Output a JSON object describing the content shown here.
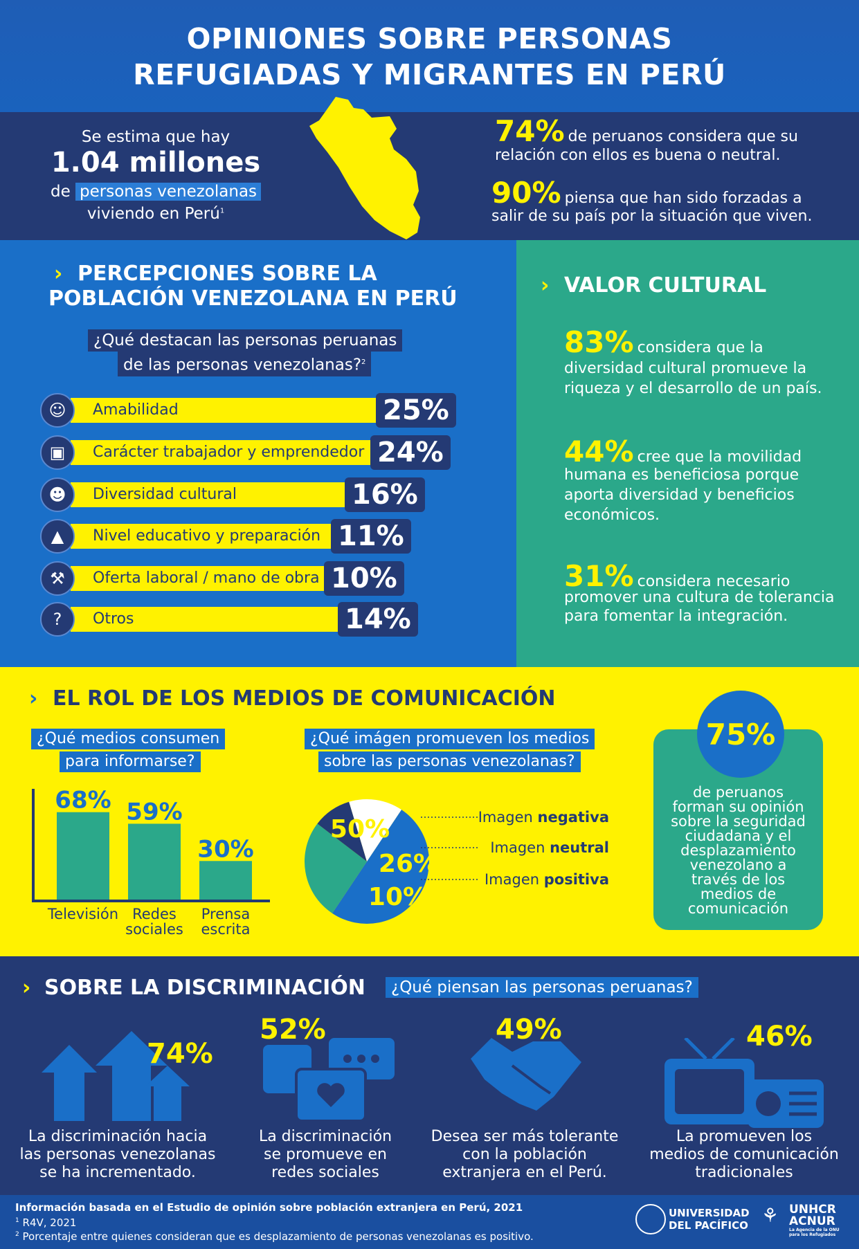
{
  "header": {
    "title_line1": "OPINIONES SOBRE PERSONAS",
    "title_line2": "REFUGIADAS Y MIGRANTES EN PERÚ"
  },
  "intro": {
    "line1": "Se estima que hay",
    "big": "1.04 millones",
    "line3_pre": "de",
    "line3_hl": "personas venezolanas",
    "line4": "viviendo en Perú",
    "line4_sup": "1",
    "stat1_pct": "74%",
    "stat1_text_a": "de peruanos considera que su",
    "stat1_text_b": "relación con ellos es buena o neutral.",
    "stat2_pct": "90%",
    "stat2_text_a": "piensa que han sido forzadas a",
    "stat2_text_b": "salir de su país por la situación que viven."
  },
  "perceptions": {
    "title_line1": "PERCEPCIONES SOBRE LA",
    "title_line2": "POBLACIÓN VENEZOLANA EN PERÚ",
    "question_line1": "¿Qué destacan las personas peruanas",
    "question_line2": "de las personas venezolanas?",
    "question_sup": "2",
    "items": [
      {
        "label": "Amabilidad",
        "value": "25%",
        "icon": "smile-icon",
        "glyph": "☺"
      },
      {
        "label": "Carácter trabajador y emprendedor",
        "value": "24%",
        "icon": "briefcase-icon",
        "glyph": "▣"
      },
      {
        "label": "Diversidad cultural",
        "value": "16%",
        "icon": "theater-masks-icon",
        "glyph": "☻"
      },
      {
        "label": "Nivel educativo y preparación",
        "value": "11%",
        "icon": "graduation-cap-icon",
        "glyph": "▲"
      },
      {
        "label": "Oferta laboral / mano de obra",
        "value": "10%",
        "icon": "wrench-icon",
        "glyph": "⚒"
      },
      {
        "label": "Otros",
        "value": "14%",
        "icon": "question-icon",
        "glyph": "?"
      }
    ]
  },
  "valor": {
    "title": "VALOR CULTURAL",
    "s1_pct": "83%",
    "s1_a": "considera que la",
    "s1_b": "diversidad cultural promueve la",
    "s1_c": "riqueza y el desarrollo de un país.",
    "s2_pct": "44%",
    "s2_a": "cree que la movilidad",
    "s2_b": "humana es beneficiosa porque",
    "s2_c": "aporta diversidad y beneficios",
    "s2_d": "económicos.",
    "s3_pct": "31%",
    "s3_a": "considera necesario",
    "s3_b": "promover una cultura de tolerancia",
    "s3_c": "para fomentar la integración."
  },
  "media": {
    "title": "EL ROL DE LOS MEDIOS DE COMUNICACIÓN",
    "q1_line1": "¿Qué medios consumen",
    "q1_line2": "para informarse?",
    "q2_line1": "¿Qué imágen promueven los medios",
    "q2_line2": "sobre las personas venezolanas?",
    "bars": [
      {
        "label_a": "Televisión",
        "label_b": "",
        "value": 68,
        "text": "68%"
      },
      {
        "label_a": "Redes",
        "label_b": "sociales",
        "value": 59,
        "text": "59%"
      },
      {
        "label_a": "Prensa",
        "label_b": "escrita",
        "value": 30,
        "text": "30%"
      }
    ],
    "pie": [
      {
        "name_pre": "Imagen",
        "name_bold": "negativa",
        "value": 50,
        "text": "50%",
        "color": "#1a6fc8"
      },
      {
        "name_pre": "Imagen",
        "name_bold": "neutral",
        "value": 26,
        "text": "26%",
        "color": "#2ba88a"
      },
      {
        "name_pre": "Imagen",
        "name_bold": "positiva",
        "value": 10,
        "text": "10%",
        "color": "#243a74"
      },
      {
        "value": 14,
        "color": "#ffffff"
      }
    ],
    "card_pct": "75%",
    "card_lines": [
      "de peruanos",
      "forman su opinión",
      "sobre la seguridad",
      "ciudadana y el",
      "desplazamiento",
      "venezolano a",
      "través de los",
      "medios de",
      "comunicación"
    ]
  },
  "discrimination": {
    "title": "SOBRE LA DISCRIMINACIÓN",
    "question": "¿Qué piensan las personas peruanas?",
    "items": [
      {
        "pct": "74%",
        "lines": [
          "La discriminación hacia",
          "las personas venezolanas",
          "se ha incrementado."
        ],
        "icon": "arrows-up-icon"
      },
      {
        "pct": "52%",
        "lines": [
          "La discriminación",
          "se promueve en",
          "redes sociales"
        ],
        "icon": "chat-bubbles-icon"
      },
      {
        "pct": "49%",
        "lines": [
          "Desea ser más tolerante",
          "con la población",
          "extranjera en el Perú."
        ],
        "icon": "handshake-icon"
      },
      {
        "pct": "46%",
        "lines": [
          "La promueven los",
          "medios de comunicación",
          "tradicionales"
        ],
        "icon": "tv-radio-icon"
      }
    ]
  },
  "footer": {
    "line1": "Información basada en el Estudio de opinión sobre población extranjera en Perú, 2021",
    "line2_sup": "1",
    "line2": "R4V, 2021",
    "line3_sup": "2",
    "line3": "Porcentaje entre quienes consideran que es desplazamiento de personas venezolanas es positivo.",
    "logo1_a": "UNIVERSIDAD",
    "logo1_b": "DEL PACÍFICO",
    "logo2_a": "UNHCR",
    "logo2_b": "ACNUR",
    "logo2_c": "La Agencia de la ONU para los Refugiados"
  }
}
